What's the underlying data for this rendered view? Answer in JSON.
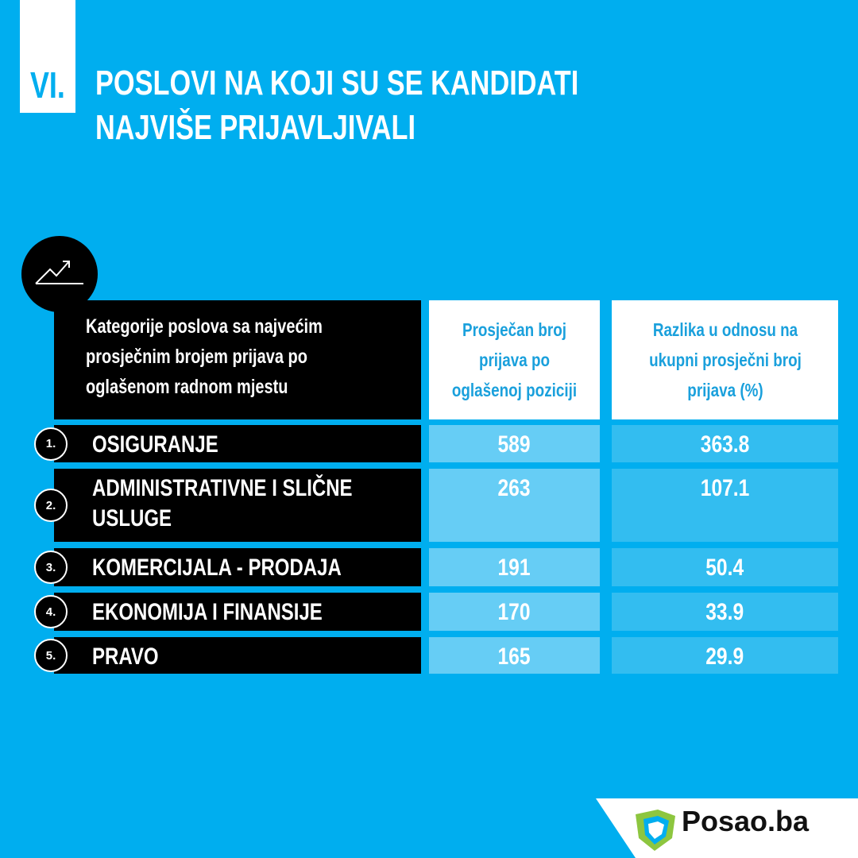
{
  "header": {
    "number": "VI.",
    "title_lines": [
      "POSLOVI NA KOJI SU SE KANDIDATI",
      "NAJVIŠE PRIJAVLJIVALI"
    ]
  },
  "table": {
    "columns": [
      "Kategorije poslova sa najvećim prosječnim brojem prijava po oglašenom radnom mjestu",
      "Prosječan broj prijava po oglašenoj poziciji",
      "Razlika u odnosu na ukupni prosječni broj prijava (%)"
    ],
    "rows": [
      [
        "1.",
        "OSIGURANJE",
        589,
        363.8
      ],
      [
        "2.",
        "ADMINISTRATIVNE I SLIČNE USLUGE",
        263,
        107.1
      ],
      [
        "3.",
        "KOMERCIJALA - PRODAJA",
        191,
        50.4
      ],
      [
        "4.",
        "EKONOMIJA I FINANSIJE",
        170,
        33.9
      ],
      [
        "5.",
        "PRAVO",
        165,
        29.9
      ]
    ]
  },
  "footer": {
    "brand": "Posao.ba"
  }
}
